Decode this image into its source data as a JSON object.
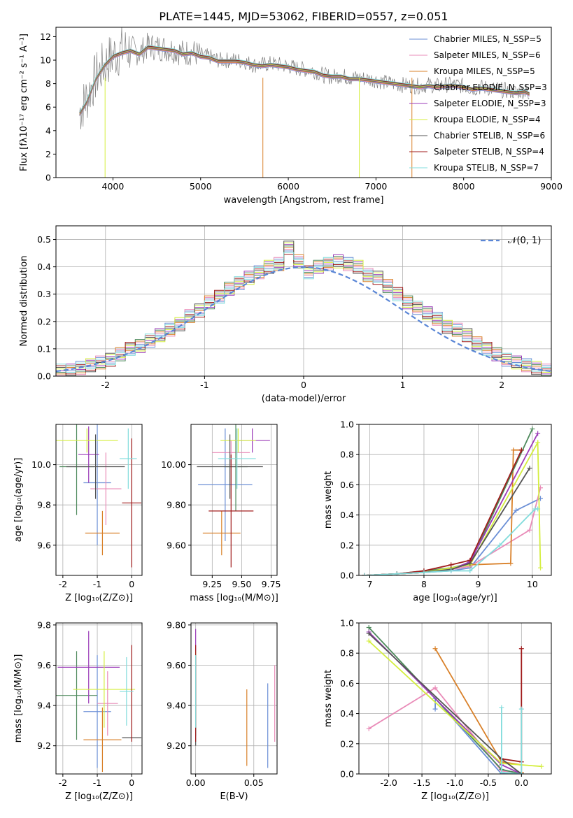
{
  "title": "PLATE=1445, MJD=53062, FIBERID=0557, z=0.051",
  "colors": [
    "#6b8fd6",
    "#e98bb8",
    "#d9812a",
    "#4e8a5c",
    "#9b3bb8",
    "#d4ee3e",
    "#555555",
    "#a01b1b",
    "#82dcdc"
  ],
  "chart_data": [
    {
      "name": "spectrum",
      "type": "line",
      "xlabel": "wavelength [Angstrom, rest frame]",
      "ylabel": "Flux [fλ10⁻¹⁷ erg cm⁻² s⁻¹ A⁻¹]",
      "xlim": [
        3350,
        9000
      ],
      "ylim": [
        0,
        12.8
      ],
      "xticks": [
        4000,
        5000,
        6000,
        7000,
        8000,
        9000
      ],
      "yticks": [
        0,
        2,
        4,
        6,
        8,
        10,
        12
      ],
      "legend": [
        "Chabrier MILES, N_SSP=5",
        "Salpeter MILES, N_SSP=6",
        "Kroupa MILES, N_SSP=5",
        "Chabrier ELODIE, N_SSP=3",
        "Salpeter ELODIE, N_SSP=3",
        "Kroupa ELODIE, N_SSP=4",
        "Chabrier STELIB, N_SSP=6",
        "Salpeter STELIB, N_SSP=4",
        "Kroupa STELIB, N_SSP=7"
      ],
      "legend_location": "upper right",
      "data_x": [
        3620,
        3700,
        3800,
        3900,
        4000,
        4100,
        4200,
        4300,
        4400,
        4500,
        4600,
        4700,
        4800,
        4900,
        5000,
        5100,
        5200,
        5300,
        5400,
        5500,
        5600,
        5700,
        5800,
        5900,
        6000,
        6100,
        6200,
        6300,
        6400,
        6500,
        6600,
        6700,
        6800,
        6900,
        7000,
        7100,
        7200,
        7300,
        7400,
        7500,
        7600,
        7700,
        7800,
        7900,
        8000,
        8100,
        8200,
        8300,
        8400,
        8500,
        8600,
        8700,
        8750
      ],
      "data_y": [
        5.6,
        6.8,
        8.5,
        9.6,
        10.4,
        10.8,
        11.0,
        10.6,
        11.2,
        11.1,
        11.0,
        10.9,
        10.6,
        10.7,
        10.4,
        10.3,
        10.0,
        10.0,
        10.0,
        9.9,
        9.6,
        9.6,
        9.7,
        9.6,
        9.5,
        9.3,
        9.2,
        9.1,
        8.7,
        8.6,
        8.7,
        8.5,
        8.5,
        8.4,
        8.3,
        8.1,
        8.0,
        7.9,
        7.8,
        7.8,
        7.9,
        7.8,
        7.9,
        7.9,
        7.8,
        7.6,
        7.7,
        7.6,
        7.5,
        7.4,
        7.3,
        7.4,
        7.2
      ],
      "model_y": [
        5.4,
        6.4,
        8.3,
        9.5,
        10.3,
        10.6,
        10.8,
        10.5,
        11.1,
        11.0,
        10.9,
        10.8,
        10.5,
        10.6,
        10.3,
        10.2,
        9.9,
        9.9,
        9.9,
        9.8,
        9.6,
        9.5,
        9.6,
        9.5,
        9.4,
        9.2,
        9.1,
        9.0,
        8.7,
        8.6,
        8.6,
        8.4,
        8.4,
        8.3,
        8.2,
        8.1,
        8.0,
        7.9,
        7.8,
        7.7,
        7.8,
        7.7,
        7.8,
        7.8,
        7.7,
        7.5,
        7.6,
        7.5,
        7.4,
        7.3,
        7.2,
        7.3,
        7.1
      ]
    },
    {
      "name": "residuals",
      "type": "line",
      "xlabel": "(data-model)/error",
      "ylabel": "Normed distribution",
      "xlim": [
        -2.5,
        2.5
      ],
      "ylim": [
        0,
        0.55
      ],
      "xticks": [
        -2,
        -1,
        0,
        1,
        2
      ],
      "yticks": [
        0.0,
        0.1,
        0.2,
        0.3,
        0.4,
        0.5
      ],
      "legend": [
        "𝒩(0, 1)"
      ],
      "legend_location": "upper right",
      "bin_edges": [
        -2.5,
        -2.4,
        -2.3,
        -2.2,
        -2.1,
        -2.0,
        -1.9,
        -1.8,
        -1.7,
        -1.6,
        -1.5,
        -1.4,
        -1.3,
        -1.2,
        -1.1,
        -1.0,
        -0.9,
        -0.8,
        -0.7,
        -0.6,
        -0.5,
        -0.4,
        -0.3,
        -0.2,
        -0.1,
        0.0,
        0.1,
        0.2,
        0.3,
        0.4,
        0.5,
        0.6,
        0.7,
        0.8,
        0.9,
        1.0,
        1.1,
        1.2,
        1.3,
        1.4,
        1.5,
        1.6,
        1.7,
        1.8,
        1.9,
        2.0,
        2.1,
        2.2,
        2.3,
        2.4,
        2.5
      ],
      "heights": [
        0.02,
        0.02,
        0.03,
        0.04,
        0.05,
        0.06,
        0.08,
        0.1,
        0.11,
        0.13,
        0.15,
        0.17,
        0.19,
        0.22,
        0.24,
        0.27,
        0.29,
        0.32,
        0.34,
        0.36,
        0.38,
        0.4,
        0.41,
        0.47,
        0.42,
        0.38,
        0.4,
        0.41,
        0.42,
        0.41,
        0.4,
        0.37,
        0.36,
        0.33,
        0.3,
        0.27,
        0.25,
        0.23,
        0.21,
        0.18,
        0.17,
        0.15,
        0.12,
        0.1,
        0.08,
        0.06,
        0.05,
        0.04,
        0.03,
        0.02
      ]
    },
    {
      "name": "Z-age",
      "type": "scatter",
      "xlabel": "Z [log₁₀(Z/Z⊙)]",
      "ylabel": "age  [log₁₀(age/yr)]",
      "xlim": [
        -2.2,
        0.3
      ],
      "ylim": [
        9.45,
        10.2
      ],
      "xticks": [
        -2,
        -1,
        0
      ],
      "yticks": [
        9.6,
        9.8,
        10.0
      ],
      "points": [
        {
          "x": -1.0,
          "y": 9.91,
          "xe": 0.4,
          "ye": 0.31
        },
        {
          "x": -0.75,
          "y": 9.88,
          "xe": 0.45,
          "ye": 0.18
        },
        {
          "x": -0.85,
          "y": 9.66,
          "xe": 0.5,
          "ye": 0.11
        },
        {
          "x": -1.6,
          "y": 9.99,
          "xe": 0.5,
          "ye": 0.24
        },
        {
          "x": -1.25,
          "y": 10.05,
          "xe": 0.3,
          "ye": 0.14
        },
        {
          "x": -1.3,
          "y": 10.12,
          "xe": 0.9,
          "ye": 0.06
        },
        {
          "x": -1.05,
          "y": 9.99,
          "xe": 0.85,
          "ye": 0.16
        },
        {
          "x": 0.0,
          "y": 9.81,
          "xe": 0.28,
          "ye": 0.32
        },
        {
          "x": -0.1,
          "y": 10.03,
          "xe": 0.25,
          "ye": 0.15
        }
      ]
    },
    {
      "name": "mass-age",
      "type": "scatter",
      "xlabel": "mass [log₁₀(M/M⊙)]",
      "ylabel": "",
      "xlim": [
        9.07,
        9.8
      ],
      "ylim": [
        9.45,
        10.2
      ],
      "xticks": [
        9.25,
        9.5,
        9.75
      ],
      "yticks": [
        9.6,
        9.8,
        10.0
      ],
      "points": [
        {
          "x": 9.36,
          "y": 9.9,
          "xe": 0.23,
          "ye": 0.28
        },
        {
          "x": 9.41,
          "y": 10.06,
          "xe": 0.16,
          "ye": 0.06
        },
        {
          "x": 9.33,
          "y": 9.66,
          "xe": 0.16,
          "ye": 0.11
        },
        {
          "x": 9.45,
          "y": 9.99,
          "xe": 0.1,
          "ye": 0.22
        },
        {
          "x": 9.59,
          "y": 10.12,
          "xe": 0.15,
          "ye": 0.06
        },
        {
          "x": 9.47,
          "y": 10.12,
          "xe": 0.15,
          "ye": 0.06
        },
        {
          "x": 9.4,
          "y": 9.99,
          "xe": 0.28,
          "ye": 0.16
        },
        {
          "x": 9.41,
          "y": 9.77,
          "xe": 0.19,
          "ye": 0.28
        },
        {
          "x": 9.46,
          "y": 10.03,
          "xe": 0.16,
          "ye": 0.15
        }
      ]
    },
    {
      "name": "age-weight",
      "type": "line",
      "xlabel": "age  [log₁₀(age/yr)]",
      "ylabel": "mass weight",
      "xlim": [
        6.8,
        10.35
      ],
      "ylim": [
        0,
        1.0
      ],
      "xticks": [
        7,
        8,
        9,
        10
      ],
      "yticks": [
        0.0,
        0.2,
        0.4,
        0.6,
        0.8,
        1.0
      ],
      "series": [
        {
          "x": [
            6.9,
            7.5,
            8.0,
            8.5,
            8.85,
            9.7,
            10.15
          ],
          "y": [
            0.0,
            0.01,
            0.02,
            0.03,
            0.05,
            0.43,
            0.51
          ]
        },
        {
          "x": [
            6.9,
            7.5,
            8.0,
            8.5,
            8.85,
            9.95,
            10.15
          ],
          "y": [
            0.0,
            0.01,
            0.02,
            0.04,
            0.06,
            0.3,
            0.58
          ]
        },
        {
          "x": [
            6.9,
            7.5,
            8.0,
            8.5,
            8.85,
            9.6,
            9.65,
            9.8
          ],
          "y": [
            0.0,
            0.01,
            0.02,
            0.05,
            0.07,
            0.08,
            0.83,
            0.83
          ]
        },
        {
          "x": [
            6.9,
            7.5,
            8.0,
            8.5,
            8.85,
            10.0
          ],
          "y": [
            0.0,
            0.01,
            0.03,
            0.05,
            0.08,
            0.97
          ]
        },
        {
          "x": [
            6.9,
            7.5,
            8.0,
            8.5,
            8.85,
            10.1
          ],
          "y": [
            0.0,
            0.01,
            0.02,
            0.04,
            0.09,
            0.94
          ]
        },
        {
          "x": [
            6.9,
            7.5,
            8.0,
            8.5,
            8.85,
            10.1,
            10.15
          ],
          "y": [
            0.0,
            0.01,
            0.02,
            0.05,
            0.07,
            0.88,
            0.05
          ]
        },
        {
          "x": [
            6.9,
            7.5,
            8.0,
            8.5,
            8.85,
            9.95
          ],
          "y": [
            0.0,
            0.01,
            0.02,
            0.04,
            0.08,
            0.71
          ]
        },
        {
          "x": [
            6.9,
            7.5,
            8.0,
            8.5,
            8.85,
            9.8
          ],
          "y": [
            0.0,
            0.01,
            0.03,
            0.07,
            0.1,
            0.83
          ]
        },
        {
          "x": [
            6.9,
            7.5,
            8.0,
            8.5,
            8.85,
            9.4,
            10.05,
            10.1
          ],
          "y": [
            0.0,
            0.01,
            0.02,
            0.03,
            0.03,
            0.2,
            0.44,
            0.44
          ]
        }
      ]
    },
    {
      "name": "Z-mass",
      "type": "scatter",
      "xlabel": "Z [log₁₀(Z/Z⊙)]",
      "ylabel": "mass [log₁₀(M/M⊙)]",
      "xlim": [
        -2.2,
        0.3
      ],
      "ylim": [
        9.06,
        9.81
      ],
      "xticks": [
        -2,
        -1,
        0
      ],
      "yticks": [
        9.2,
        9.4,
        9.6,
        9.8
      ],
      "points": [
        {
          "x": -1.0,
          "y": 9.37,
          "xe": 0.4,
          "ye": 0.28
        },
        {
          "x": -0.7,
          "y": 9.41,
          "xe": 0.3,
          "ye": 0.16
        },
        {
          "x": -0.85,
          "y": 9.23,
          "xe": 0.55,
          "ye": 0.16
        },
        {
          "x": -1.6,
          "y": 9.45,
          "xe": 0.6,
          "ye": 0.22
        },
        {
          "x": -1.25,
          "y": 9.59,
          "xe": 0.9,
          "ye": 0.18
        },
        {
          "x": -0.8,
          "y": 9.48,
          "xe": 0.9,
          "ye": 0.19
        },
        {
          "x": 0.0,
          "y": 9.24,
          "xe": 0.28,
          "ye": 0.0
        },
        {
          "x": 0.0,
          "y": 9.46,
          "xe": 0.0,
          "ye": 0.24
        },
        {
          "x": -0.15,
          "y": 9.47,
          "xe": 0.2,
          "ye": 0.17
        }
      ]
    },
    {
      "name": "ebv-mass",
      "type": "scatter",
      "xlabel": "E(B-V)",
      "ylabel": "",
      "xlim": [
        -0.004,
        0.07
      ],
      "ylim": [
        9.06,
        9.81
      ],
      "xticks": [
        0.0,
        0.05
      ],
      "yticks": [
        9.2,
        9.4,
        9.6,
        9.8
      ],
      "points": [
        {
          "x": 0.062,
          "y": 9.3,
          "ye": 0.21
        },
        {
          "x": 0.068,
          "y": 9.41,
          "ye": 0.19
        },
        {
          "x": 0.044,
          "y": 9.29,
          "ye": 0.19
        },
        {
          "x": 0.0,
          "y": 9.45,
          "ye": 0.2
        },
        {
          "x": 0.0,
          "y": 9.6,
          "ye": 0.18
        },
        {
          "x": 0.0,
          "y": 9.48,
          "ye": 0.19
        },
        {
          "x": 0.0,
          "y": 9.42,
          "ye": 0.22
        },
        {
          "x": 0.0,
          "y": 9.46,
          "ye": 0.24
        },
        {
          "x": 0.0,
          "y": 9.47,
          "ye": 0.18
        }
      ]
    },
    {
      "name": "Z-weight",
      "type": "line",
      "xlabel": "Z [log₁₀(Z/Z⊙)]",
      "ylabel": "mass weight",
      "xlim": [
        -2.45,
        0.45
      ],
      "ylim": [
        0,
        1.0
      ],
      "xticks": [
        -2.0,
        -1.5,
        -1.0,
        -0.5,
        0.0
      ],
      "yticks": [
        0.0,
        0.2,
        0.4,
        0.6,
        0.8,
        1.0
      ],
      "series": [
        {
          "x": [
            -1.3,
            -1.3,
            -0.3,
            0.0
          ],
          "y": [
            0.43,
            0.5,
            0.0,
            0.0
          ]
        },
        {
          "x": [
            -2.3,
            -1.3,
            -0.3,
            0.0
          ],
          "y": [
            0.3,
            0.57,
            0.02,
            0.01
          ]
        },
        {
          "x": [
            -1.3,
            -0.3,
            0.0,
            0.0
          ],
          "y": [
            0.83,
            0.08,
            0.06,
            0.01
          ]
        },
        {
          "x": [
            -2.3,
            -0.3,
            0.0
          ],
          "y": [
            0.97,
            0.03,
            0.0
          ]
        },
        {
          "x": [
            -2.3,
            -0.3,
            0.0
          ],
          "y": [
            0.94,
            0.06,
            0.0
          ]
        },
        {
          "x": [
            -2.3,
            -0.3,
            0.0,
            0.3
          ],
          "y": [
            0.88,
            0.07,
            0.06,
            0.05
          ]
        },
        {
          "x": [
            -2.3,
            -0.3,
            0.0
          ],
          "y": [
            0.93,
            0.1,
            0.0
          ]
        },
        {
          "x": [
            -0.3,
            0.0,
            0.0
          ],
          "y": [
            0.1,
            0.08,
            0.83
          ]
        },
        {
          "x": [
            -0.3,
            -0.3,
            0.0,
            0.0
          ],
          "y": [
            0.44,
            0.01,
            0.0,
            0.43
          ]
        }
      ]
    }
  ]
}
